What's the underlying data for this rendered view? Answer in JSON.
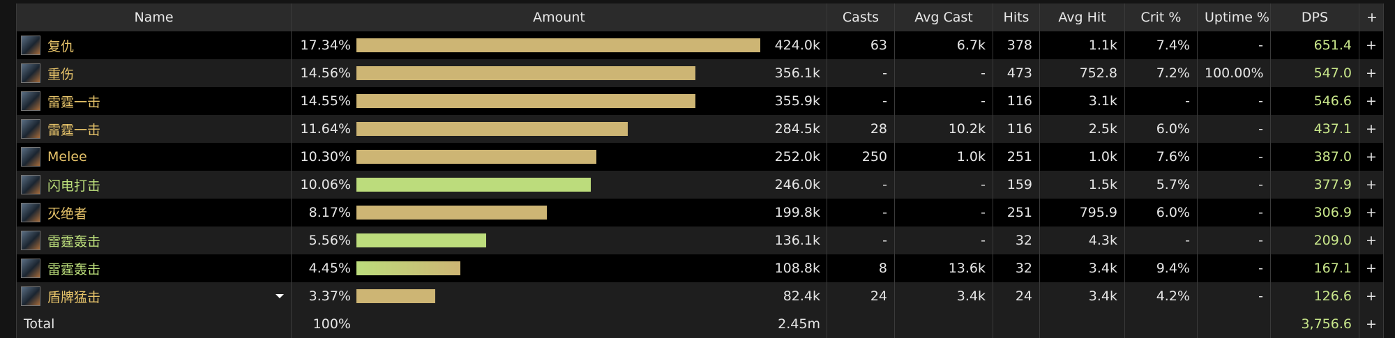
{
  "table": {
    "columns": [
      "Name",
      "Amount",
      "Casts",
      "Avg Cast",
      "Hits",
      "Avg Hit",
      "Crit %",
      "Uptime %",
      "DPS",
      "+"
    ],
    "rows": [
      {
        "name": "复仇",
        "name_color": "#e6c36a",
        "pct": {
          "value": 17.34,
          "label": "17.34%"
        },
        "bar_color": [
          "#cdb574"
        ],
        "amount": "424.0k",
        "casts": "63",
        "avg_cast": "6.7k",
        "hits": "378",
        "avg_hit": "1.1k",
        "crit": "7.4%",
        "uptime": "-",
        "dps": "651.4",
        "action": "+"
      },
      {
        "name": "重伤",
        "name_color": "#e6c36a",
        "pct": {
          "value": 14.56,
          "label": "14.56%"
        },
        "bar_color": [
          "#cdb574"
        ],
        "amount": "356.1k",
        "casts": "-",
        "avg_cast": "-",
        "hits": "473",
        "avg_hit": "752.8",
        "crit": "7.2%",
        "uptime": "100.00%",
        "dps": "547.0",
        "action": "+"
      },
      {
        "name": "雷霆一击",
        "name_color": "#e6c36a",
        "pct": {
          "value": 14.55,
          "label": "14.55%"
        },
        "bar_color": [
          "#cdb574"
        ],
        "amount": "355.9k",
        "casts": "-",
        "avg_cast": "-",
        "hits": "116",
        "avg_hit": "3.1k",
        "crit": "-",
        "uptime": "-",
        "dps": "546.6",
        "action": "+"
      },
      {
        "name": "雷霆一击",
        "name_color": "#e6c36a",
        "pct": {
          "value": 11.64,
          "label": "11.64%"
        },
        "bar_color": [
          "#cdb574"
        ],
        "amount": "284.5k",
        "casts": "28",
        "avg_cast": "10.2k",
        "hits": "116",
        "avg_hit": "2.5k",
        "crit": "6.0%",
        "uptime": "-",
        "dps": "437.1",
        "action": "+"
      },
      {
        "name": "Melee",
        "name_color": "#e6c36a",
        "pct": {
          "value": 10.3,
          "label": "10.30%"
        },
        "bar_color": [
          "#cdb574"
        ],
        "amount": "252.0k",
        "casts": "250",
        "avg_cast": "1.0k",
        "hits": "251",
        "avg_hit": "1.0k",
        "crit": "7.6%",
        "uptime": "-",
        "dps": "387.0",
        "action": "+"
      },
      {
        "name": "闪电打击",
        "name_color": "#bde07c",
        "pct": {
          "value": 10.06,
          "label": "10.06%"
        },
        "bar_color": [
          "#bcdc7c"
        ],
        "amount": "246.0k",
        "casts": "-",
        "avg_cast": "-",
        "hits": "159",
        "avg_hit": "1.5k",
        "crit": "5.7%",
        "uptime": "-",
        "dps": "377.9",
        "action": "+"
      },
      {
        "name": "灭绝者",
        "name_color": "#e6c36a",
        "pct": {
          "value": 8.17,
          "label": "8.17%"
        },
        "bar_color": [
          "#cdb574"
        ],
        "amount": "199.8k",
        "casts": "-",
        "avg_cast": "-",
        "hits": "251",
        "avg_hit": "795.9",
        "crit": "6.0%",
        "uptime": "-",
        "dps": "306.9",
        "action": "+"
      },
      {
        "name": "雷霆轰击",
        "name_color": "#bde07c",
        "pct": {
          "value": 5.56,
          "label": "5.56%"
        },
        "bar_color": [
          "#bcdc7c"
        ],
        "amount": "136.1k",
        "casts": "-",
        "avg_cast": "-",
        "hits": "32",
        "avg_hit": "4.3k",
        "crit": "-",
        "uptime": "-",
        "dps": "209.0",
        "action": "+"
      },
      {
        "name": "雷霆轰击",
        "name_color": "#bde07c",
        "pct": {
          "value": 4.45,
          "label": "4.45%"
        },
        "bar_color": [
          "#bcdc7c",
          "#cdb574"
        ],
        "amount": "108.8k",
        "casts": "8",
        "avg_cast": "13.6k",
        "hits": "32",
        "avg_hit": "3.4k",
        "crit": "9.4%",
        "uptime": "-",
        "dps": "167.1",
        "action": "+"
      },
      {
        "name": "盾牌猛击",
        "name_color": "#e6c36a",
        "expandable": true,
        "pct": {
          "value": 3.37,
          "label": "3.37%"
        },
        "bar_color": [
          "#cdb574"
        ],
        "amount": "82.4k",
        "casts": "24",
        "avg_cast": "3.4k",
        "hits": "24",
        "avg_hit": "3.4k",
        "crit": "4.2%",
        "uptime": "-",
        "dps": "126.6",
        "action": "+"
      }
    ],
    "total": {
      "name": "Total",
      "pct": "100%",
      "amount": "2.45m",
      "dps": "3,756.6",
      "action": "+"
    }
  }
}
